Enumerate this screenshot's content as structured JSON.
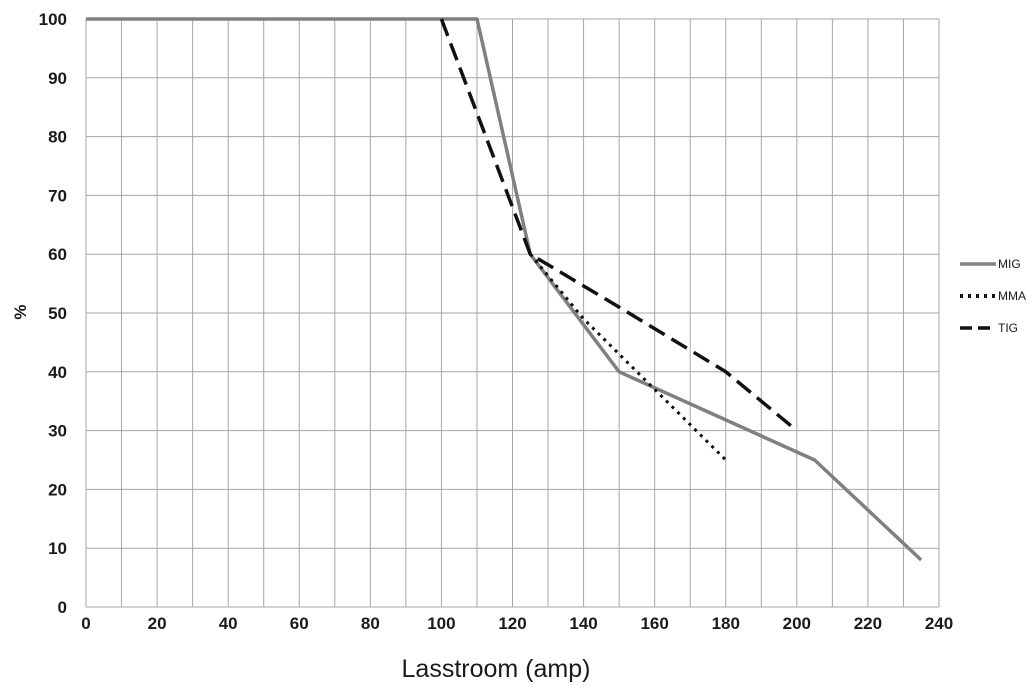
{
  "chart_data": {
    "type": "line",
    "title": "",
    "xlabel": "Lasstroom (amp)",
    "ylabel": "%",
    "xlim": [
      0,
      240
    ],
    "ylim": [
      0,
      100
    ],
    "x_major_ticks": [
      0,
      20,
      40,
      60,
      80,
      100,
      120,
      140,
      160,
      180,
      200,
      220,
      240
    ],
    "x_grid_step": 10,
    "y_ticks": [
      0,
      10,
      20,
      30,
      40,
      50,
      60,
      70,
      80,
      90,
      100
    ],
    "grid": true,
    "legend_position": "right",
    "series": [
      {
        "name": "MIG",
        "color": "#808080",
        "style": "solid",
        "points": [
          [
            0,
            100
          ],
          [
            110,
            100
          ],
          [
            125,
            60
          ],
          [
            150,
            40
          ],
          [
            205,
            25
          ],
          [
            235,
            8
          ]
        ]
      },
      {
        "name": "MMA",
        "color": "#111111",
        "style": "dotted",
        "points": [
          [
            125,
            60
          ],
          [
            140,
            49
          ],
          [
            160,
            37
          ],
          [
            180,
            25
          ]
        ]
      },
      {
        "name": "TIG",
        "color": "#111111",
        "style": "dashed",
        "points": [
          [
            100,
            100
          ],
          [
            125,
            60
          ],
          [
            150,
            51
          ],
          [
            180,
            40
          ],
          [
            200,
            30
          ]
        ]
      }
    ]
  }
}
